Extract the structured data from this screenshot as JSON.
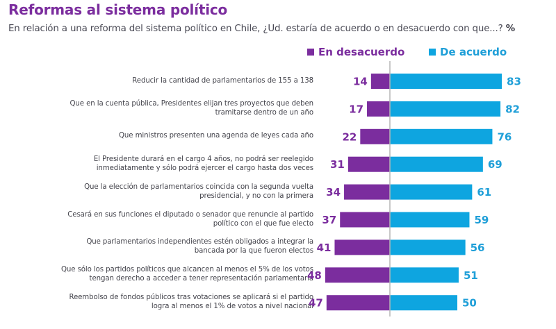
{
  "header": {
    "title": "Reformas al sistema político",
    "subtitle": "En relación a una reforma del sistema político en Chile, ¿Ud. estaría de acuerdo o en desacuerdo con que...?",
    "unit": "%"
  },
  "colors": {
    "disagree": "#7b2d9e",
    "agree": "#0ea5e0",
    "agree_text": "#1f9fd8",
    "axis": "#b5b5b5"
  },
  "chart_data": {
    "type": "bar",
    "orientation": "horizontal-diverging",
    "title": "Reformas al sistema político",
    "subtitle": "En relación a una reforma del sistema político en Chile, ¿Ud. estaría de acuerdo o en desacuerdo con que...? %",
    "xlabel": "",
    "ylabel": "",
    "legend": {
      "placement": "top-right",
      "entries": [
        "En desacuerdo",
        "De acuerdo"
      ]
    },
    "grid": false,
    "categories": [
      [
        "Reducir la cantidad de parlamentarios de 155 a 138"
      ],
      [
        "Que en la cuenta pública, Presidentes elijan tres proyectos que deben",
        "tramitarse dentro de un año"
      ],
      [
        "Que ministros presenten una agenda de leyes cada año"
      ],
      [
        "El Presidente durará en el cargo 4 años, no podrá ser reelegido",
        "inmediatamente y sólo podrá ejercer el cargo hasta dos veces"
      ],
      [
        "Que la elección de parlamentarios coincida con la segunda vuelta",
        "presidencial, y no con la primera"
      ],
      [
        "Cesará en sus funciones el diputado o senador que renuncie al partido",
        "político con el que fue electo"
      ],
      [
        "Que parlamentarios independientes estén obligados a integrar la",
        "bancada por la que fueron electos"
      ],
      [
        "Que sólo los partidos políticos que alcancen al menos el 5% de los votos",
        "tengan derecho a acceder a tener representación parlamentaria"
      ],
      [
        "Reembolso de fondos públicos tras votaciones se aplicará si el partido",
        "logra al menos el 1% de votos a nivel nacional"
      ]
    ],
    "series": [
      {
        "name": "En desacuerdo",
        "direction": "left",
        "values": [
          14,
          17,
          22,
          31,
          34,
          37,
          41,
          48,
          47
        ]
      },
      {
        "name": "De acuerdo",
        "direction": "right",
        "values": [
          83,
          82,
          76,
          69,
          61,
          59,
          56,
          51,
          50
        ]
      }
    ],
    "xlim": [
      -100,
      100
    ]
  }
}
